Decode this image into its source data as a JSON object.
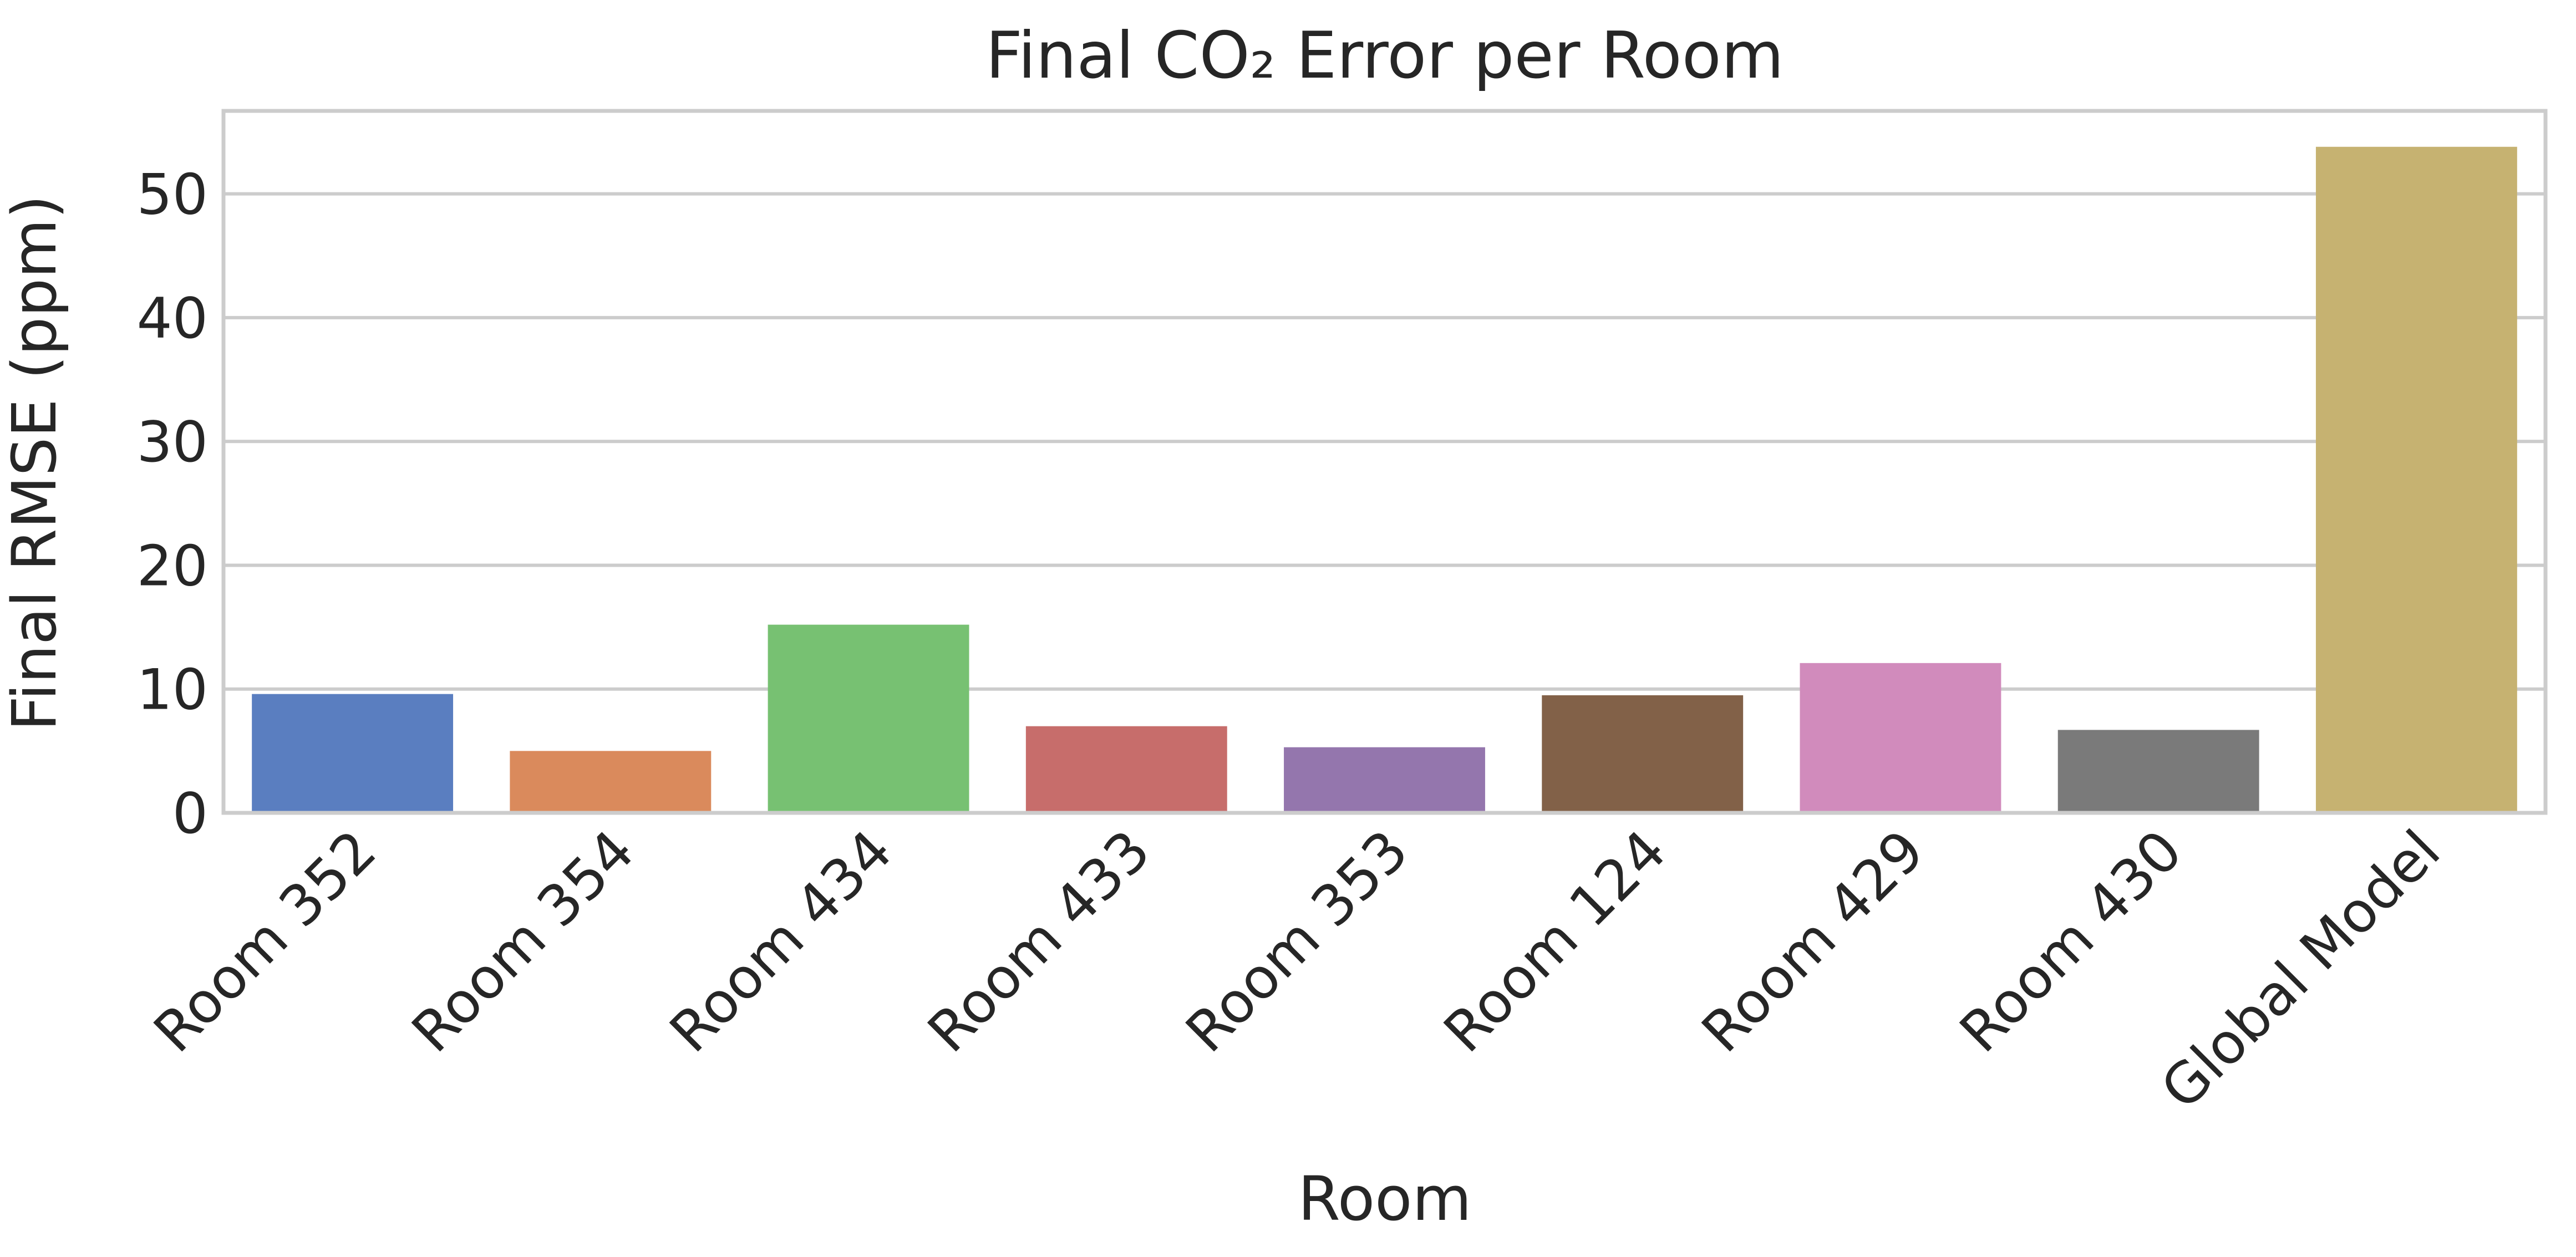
{
  "chart_data": {
    "type": "bar",
    "title": "Final CO₂ Error per Room",
    "xlabel": "Room",
    "ylabel": "Final RMSE (ppm)",
    "categories": [
      "Room 352",
      "Room 354",
      "Room 434",
      "Room 433",
      "Room 353",
      "Room 124",
      "Room 429",
      "Room 430",
      "Global Model"
    ],
    "values": [
      9.6,
      5.0,
      15.2,
      7.0,
      5.3,
      9.5,
      12.1,
      6.7,
      53.8
    ],
    "colors": [
      "#5a7ec0",
      "#da8a5c",
      "#77c172",
      "#c76d6b",
      "#9476ad",
      "#826148",
      "#d18bbc",
      "#7a7a7a",
      "#c6b271"
    ],
    "ylim": [
      0,
      56.7
    ],
    "yticks": [
      0,
      10,
      20,
      30,
      40,
      50
    ],
    "grid": "y",
    "legend": "none"
  }
}
